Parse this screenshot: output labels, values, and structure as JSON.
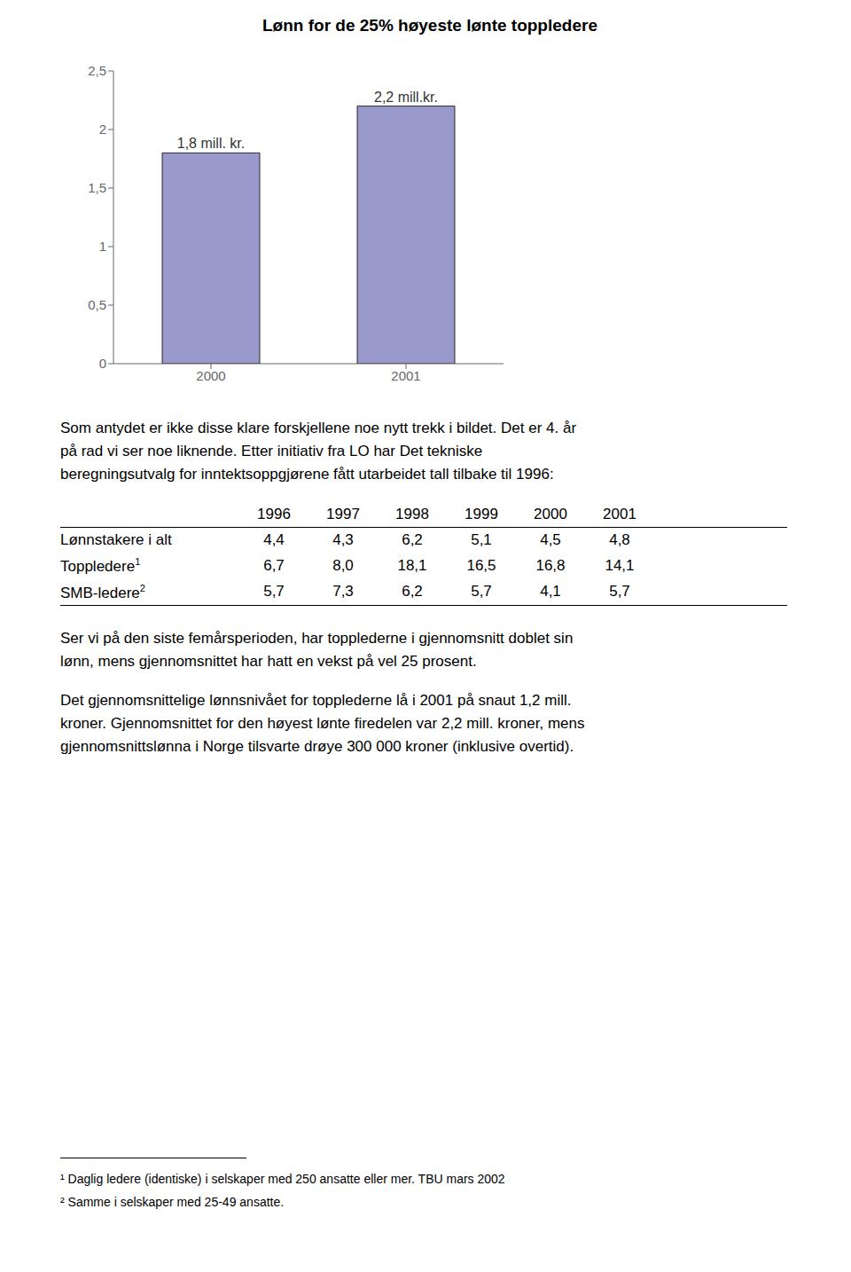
{
  "chart_data": {
    "type": "bar",
    "title": "Lønn for de 25% høyeste lønte toppledere",
    "categories": [
      "2000",
      "2001"
    ],
    "values": [
      1.8,
      2.2
    ],
    "value_labels": [
      "1,8 mill. kr.",
      "2,2 mill.kr."
    ],
    "data_labels": true,
    "color": "#9999cc",
    "ylim": [
      0,
      2.5
    ],
    "yticks": [
      0,
      {
        "value": 0.5,
        "label": "0,5"
      },
      1,
      {
        "value": 1.5,
        "label": "1,5"
      },
      2,
      {
        "value": 2.5,
        "label": "2,5"
      }
    ],
    "grid": false,
    "paragraphs": [
      [
        "Som antydet er ikke disse klare forskjellene noe nytt trekk i bildet. Det er 4. år",
        "på rad vi ser noe liknende. Etter initiativ fra LO har Det tekniske",
        "beregningsutvalg for inntektsoppgjørene fått utarbeidet tall tilbake til 1996:"
      ],
      [
        "Ser vi på den siste femårsperioden, har topplederne i gjennomsnitt doblet sin",
        "lønn, mens gjennomsnittet har hatt en vekst på vel 25 prosent."
      ],
      [
        "Det gjennomsnittelige lønnsnivået for topplederne lå i 2001 på snaut 1,2 mill.",
        "kroner. Gjennomsnittet for den høyest lønte firedelen var 2,2 mill. kroner, mens",
        "gjennomsnittslønna i Norge tilsvarte drøye 300 000 kroner (inklusive overtid)."
      ]
    ],
    "table": {
      "columns": [
        "1996",
        "1997",
        "1998",
        "1999",
        "2000",
        "2001"
      ],
      "rows": [
        {
          "label": "Lønnstakere i alt",
          "superscript": "",
          "values": [
            "4,4",
            "4,3",
            "6,2",
            "5,1",
            "4,5",
            "4,8"
          ]
        },
        {
          "label": "Toppledere",
          "superscript": "1",
          "values": [
            "6,7",
            "8,0",
            "18,1",
            "16,5",
            "16,8",
            "14,1"
          ]
        },
        {
          "label": "SMB-ledere",
          "superscript": "2",
          "values": [
            "5,7",
            "7,3",
            "6,2",
            "5,7",
            "4,1",
            "5,7"
          ]
        }
      ]
    },
    "footnotes": [
      "¹  Daglig ledere (identiske) i selskaper med 250 ansatte eller mer. TBU mars 2002",
      "²  Samme i selskaper med 25-49 ansatte."
    ]
  }
}
